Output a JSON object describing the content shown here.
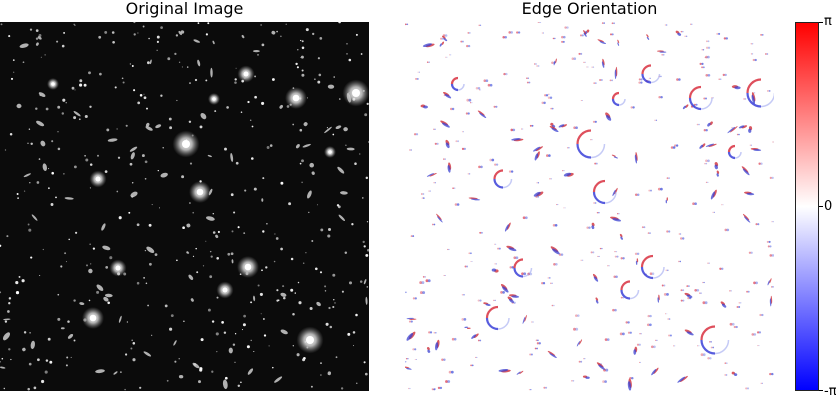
{
  "panels": [
    {
      "title": "Original Image",
      "image": "deep-field-grayscale"
    },
    {
      "title": "Edge Orientation",
      "image": "edge-orientation-map"
    }
  ],
  "colorbar": {
    "colormap": "bwr",
    "colors": {
      "low": "#0000ff",
      "mid": "#ffffff",
      "high": "#ff0000"
    },
    "ticks": [
      {
        "label": "π",
        "value": 3.14159
      },
      {
        "label": "0",
        "value": 0
      },
      {
        "label": "-π",
        "value": -3.14159
      }
    ]
  }
}
